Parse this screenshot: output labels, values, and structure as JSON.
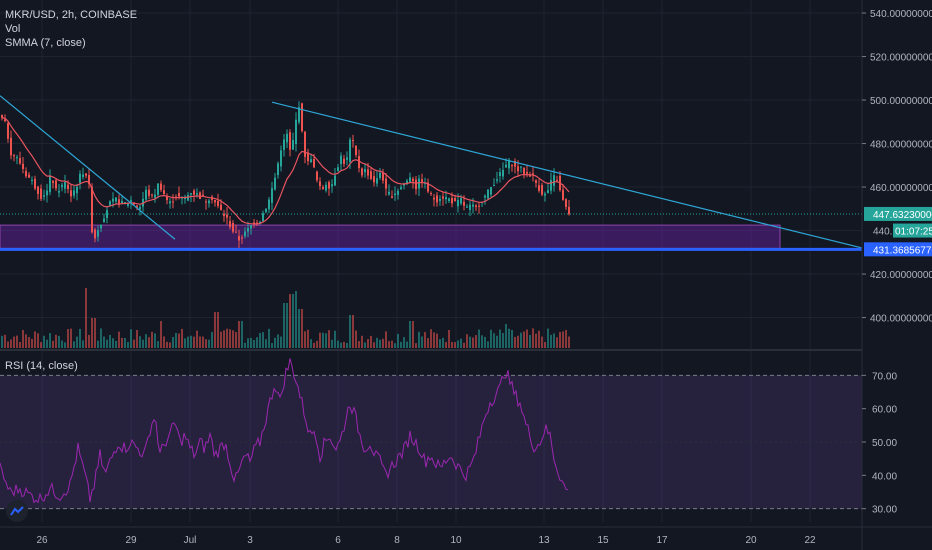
{
  "header": {
    "symbol_line": "MKR/USD, 2h, COINBASE",
    "vol_label": "Vol",
    "smma_label": "SMMA (7, close)",
    "rsi_label": "RSI (14, close)"
  },
  "colors": {
    "background": "#131722",
    "grid": "#1e2330",
    "up": "#26a69a",
    "down": "#ef5350",
    "smma": "#e8545f",
    "trendline": "#2ea6d6",
    "support": "#2962ff",
    "zone": "#6b21a8",
    "rsi_line": "#9c27b0",
    "rsi_band": "#7e57c2"
  },
  "price_axis": {
    "ticks": [
      "540.00000000",
      "520.00000000",
      "500.00000000",
      "480.00000000",
      "460.00000000",
      "420.00000000",
      "400.00000000"
    ],
    "tick_values": [
      540,
      520,
      500,
      480,
      460,
      420,
      400
    ],
    "last_price_label": "447.63230000",
    "last_price": 447.6323,
    "countdown_prefix": "440.",
    "countdown": "01:07:25",
    "support_label": "431.36856776",
    "support_price": 431.36856776
  },
  "rsi_axis": {
    "ticks": [
      "70.00",
      "60.00",
      "50.00",
      "40.00",
      "30.00"
    ],
    "tick_values": [
      70,
      60,
      50,
      40,
      30
    ]
  },
  "time_axis": {
    "labels": [
      "26",
      "29",
      "Jul",
      "3",
      "6",
      "8",
      "10",
      "13",
      "15",
      "17",
      "20",
      "22"
    ]
  },
  "chart_data": {
    "type": "candlestick",
    "symbol": "MKR/USD",
    "interval": "2h",
    "exchange": "COINBASE",
    "ylim": [
      386,
      546
    ],
    "rsi_ylim": [
      26,
      77
    ],
    "rsi_bands": [
      30,
      70
    ],
    "price_keypoints": [
      [
        0,
        492
      ],
      [
        5,
        488
      ],
      [
        10,
        476
      ],
      [
        18,
        472
      ],
      [
        25,
        466
      ],
      [
        32,
        462
      ],
      [
        40,
        456
      ],
      [
        46,
        458
      ],
      [
        50,
        466
      ],
      [
        55,
        458
      ],
      [
        60,
        460
      ],
      [
        65,
        462
      ],
      [
        70,
        456
      ],
      [
        75,
        460
      ],
      [
        80,
        466
      ],
      [
        84,
        468
      ],
      [
        88,
        460
      ],
      [
        92,
        434
      ],
      [
        96,
        440
      ],
      [
        100,
        444
      ],
      [
        108,
        452
      ],
      [
        115,
        454
      ],
      [
        122,
        452
      ],
      [
        130,
        454
      ],
      [
        138,
        450
      ],
      [
        145,
        458
      ],
      [
        152,
        455
      ],
      [
        158,
        462
      ],
      [
        162,
        458
      ],
      [
        168,
        452
      ],
      [
        175,
        456
      ],
      [
        182,
        454
      ],
      [
        190,
        458
      ],
      [
        198,
        456
      ],
      [
        205,
        454
      ],
      [
        210,
        456
      ],
      [
        218,
        450
      ],
      [
        225,
        446
      ],
      [
        232,
        440
      ],
      [
        238,
        436
      ],
      [
        243,
        438
      ],
      [
        248,
        441
      ],
      [
        253,
        444
      ],
      [
        258,
        444
      ],
      [
        262,
        448
      ],
      [
        268,
        454
      ],
      [
        275,
        466
      ],
      [
        280,
        478
      ],
      [
        286,
        484
      ],
      [
        290,
        474
      ],
      [
        294,
        488
      ],
      [
        298,
        498
      ],
      [
        302,
        480
      ],
      [
        306,
        470
      ],
      [
        310,
        474
      ],
      [
        315,
        464
      ],
      [
        320,
        458
      ],
      [
        325,
        462
      ],
      [
        330,
        460
      ],
      [
        335,
        468
      ],
      [
        340,
        474
      ],
      [
        345,
        470
      ],
      [
        350,
        484
      ],
      [
        355,
        474
      ],
      [
        360,
        466
      ],
      [
        365,
        468
      ],
      [
        370,
        464
      ],
      [
        375,
        462
      ],
      [
        380,
        468
      ],
      [
        385,
        458
      ],
      [
        390,
        456
      ],
      [
        395,
        458
      ],
      [
        400,
        460
      ],
      [
        405,
        462
      ],
      [
        410,
        466
      ],
      [
        415,
        460
      ],
      [
        420,
        464
      ],
      [
        425,
        460
      ],
      [
        430,
        456
      ],
      [
        435,
        454
      ],
      [
        440,
        456
      ],
      [
        445,
        455
      ],
      [
        450,
        454
      ],
      [
        455,
        452
      ],
      [
        460,
        454
      ],
      [
        465,
        450
      ],
      [
        470,
        451
      ],
      [
        475,
        450
      ],
      [
        480,
        454
      ],
      [
        485,
        456
      ],
      [
        490,
        460
      ],
      [
        495,
        464
      ],
      [
        500,
        466
      ],
      [
        505,
        470
      ],
      [
        510,
        472
      ],
      [
        515,
        468
      ],
      [
        520,
        468
      ],
      [
        525,
        466
      ],
      [
        530,
        466
      ],
      [
        535,
        462
      ],
      [
        540,
        458
      ],
      [
        545,
        456
      ],
      [
        550,
        462
      ],
      [
        555,
        466
      ],
      [
        560,
        456
      ],
      [
        565,
        450
      ],
      [
        569,
        447.63
      ]
    ],
    "rsi_keypoints": [
      [
        0,
        42
      ],
      [
        10,
        35
      ],
      [
        20,
        36
      ],
      [
        30,
        34
      ],
      [
        40,
        33
      ],
      [
        50,
        36
      ],
      [
        60,
        34
      ],
      [
        70,
        37
      ],
      [
        78,
        48
      ],
      [
        85,
        40
      ],
      [
        90,
        33
      ],
      [
        95,
        38
      ],
      [
        100,
        46
      ],
      [
        105,
        40
      ],
      [
        110,
        44
      ],
      [
        118,
        50
      ],
      [
        125,
        48
      ],
      [
        130,
        50
      ],
      [
        138,
        48
      ],
      [
        145,
        46
      ],
      [
        150,
        54
      ],
      [
        155,
        58
      ],
      [
        160,
        46
      ],
      [
        165,
        50
      ],
      [
        170,
        52
      ],
      [
        175,
        56
      ],
      [
        180,
        50
      ],
      [
        185,
        52
      ],
      [
        190,
        48
      ],
      [
        195,
        46
      ],
      [
        200,
        50
      ],
      [
        205,
        48
      ],
      [
        210,
        52
      ],
      [
        215,
        46
      ],
      [
        220,
        48
      ],
      [
        225,
        50
      ],
      [
        230,
        44
      ],
      [
        235,
        38
      ],
      [
        240,
        42
      ],
      [
        245,
        46
      ],
      [
        250,
        44
      ],
      [
        255,
        48
      ],
      [
        260,
        50
      ],
      [
        265,
        56
      ],
      [
        270,
        62
      ],
      [
        275,
        68
      ],
      [
        280,
        62
      ],
      [
        285,
        70
      ],
      [
        290,
        74
      ],
      [
        295,
        70
      ],
      [
        300,
        64
      ],
      [
        305,
        58
      ],
      [
        310,
        52
      ],
      [
        315,
        54
      ],
      [
        320,
        46
      ],
      [
        325,
        50
      ],
      [
        330,
        52
      ],
      [
        335,
        48
      ],
      [
        340,
        50
      ],
      [
        345,
        56
      ],
      [
        350,
        62
      ],
      [
        355,
        58
      ],
      [
        360,
        52
      ],
      [
        365,
        48
      ],
      [
        370,
        50
      ],
      [
        375,
        46
      ],
      [
        380,
        44
      ],
      [
        385,
        40
      ],
      [
        390,
        42
      ],
      [
        395,
        44
      ],
      [
        400,
        46
      ],
      [
        405,
        48
      ],
      [
        410,
        52
      ],
      [
        415,
        50
      ],
      [
        420,
        48
      ],
      [
        425,
        44
      ],
      [
        430,
        46
      ],
      [
        435,
        44
      ],
      [
        440,
        42
      ],
      [
        445,
        44
      ],
      [
        450,
        46
      ],
      [
        455,
        44
      ],
      [
        460,
        42
      ],
      [
        465,
        40
      ],
      [
        470,
        42
      ],
      [
        475,
        46
      ],
      [
        480,
        52
      ],
      [
        485,
        58
      ],
      [
        490,
        62
      ],
      [
        495,
        64
      ],
      [
        500,
        66
      ],
      [
        505,
        72
      ],
      [
        510,
        68
      ],
      [
        515,
        64
      ],
      [
        520,
        62
      ],
      [
        525,
        56
      ],
      [
        530,
        52
      ],
      [
        535,
        48
      ],
      [
        540,
        50
      ],
      [
        545,
        54
      ],
      [
        550,
        52
      ],
      [
        555,
        44
      ],
      [
        560,
        40
      ],
      [
        565,
        36
      ],
      [
        569,
        35
      ]
    ],
    "smma": {
      "name": "SMMA (7, close)",
      "period": 7
    },
    "volume_scale": "relative",
    "volume_spikes": [
      [
        85,
        1.0
      ],
      [
        92,
        0.5
      ],
      [
        160,
        0.45
      ],
      [
        215,
        0.6
      ],
      [
        240,
        0.45
      ],
      [
        285,
        0.75
      ],
      [
        290,
        0.9
      ],
      [
        295,
        0.95
      ],
      [
        300,
        0.65
      ],
      [
        350,
        0.55
      ],
      [
        410,
        0.45
      ],
      [
        505,
        0.4
      ],
      [
        565,
        0.3
      ]
    ],
    "trendlines": [
      {
        "from": [
          0,
          502
        ],
        "to": [
          175,
          436
        ]
      },
      {
        "from": [
          272,
          499
        ],
        "to": [
          862,
          432
        ]
      }
    ],
    "support_line": 431.36856776,
    "zone": {
      "top": 442.5,
      "bottom": 431.8,
      "x_start": 0,
      "x_end": 780
    },
    "last_price": 447.6323
  }
}
